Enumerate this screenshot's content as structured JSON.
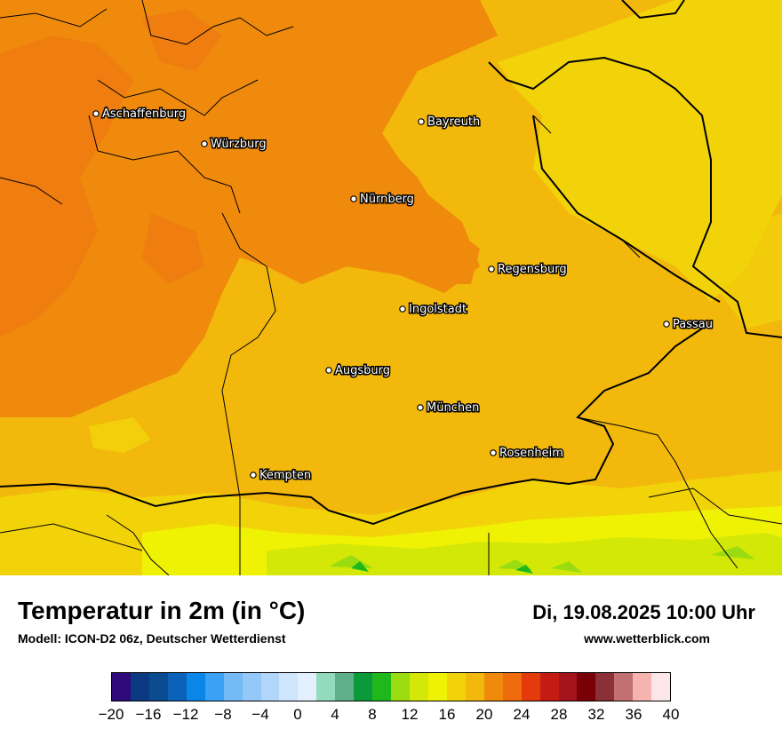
{
  "map": {
    "cities": [
      {
        "name": "Aschaffenburg"
      },
      {
        "name": "Würzburg"
      },
      {
        "name": "Bayreuth"
      },
      {
        "name": "Nürnberg"
      },
      {
        "name": "Regensburg"
      },
      {
        "name": "Ingolstadt"
      },
      {
        "name": "Passau"
      },
      {
        "name": "Augsburg"
      },
      {
        "name": "München"
      },
      {
        "name": "Rosenheim"
      },
      {
        "name": "Kempten"
      }
    ]
  },
  "header": {
    "title": "Temperatur in 2m (in °C)",
    "model": "Modell: ICON-D2 06z, Deutscher Wetterdienst",
    "datetime": "Di, 19.08.2025 10:00 Uhr",
    "website": "www.wetterblick.com"
  },
  "legend": {
    "colors": [
      "#2e0a7a",
      "#0b3a82",
      "#0b4b8f",
      "#0a63b8",
      "#0a86e8",
      "#3aa1f5",
      "#74baf7",
      "#93c8f8",
      "#b0d6fa",
      "#cfe5fc",
      "#e4f0fd",
      "#92dbbd",
      "#5fb08a",
      "#0b9a3a",
      "#1fb81c",
      "#9adc10",
      "#d4e808",
      "#f0f204",
      "#f2d30a",
      "#f2b80c",
      "#f08a0c",
      "#ee6c0c",
      "#e43a0c",
      "#c41c12",
      "#a4141a",
      "#7a0008",
      "#8a3036",
      "#c27070",
      "#f7b3b0",
      "#fde6ea"
    ],
    "ticks": [
      "−20",
      "−16",
      "−12",
      "−8",
      "−4",
      "0",
      "4",
      "8",
      "12",
      "16",
      "20",
      "24",
      "28",
      "32",
      "36",
      "40"
    ],
    "min": -20,
    "max": 40
  }
}
